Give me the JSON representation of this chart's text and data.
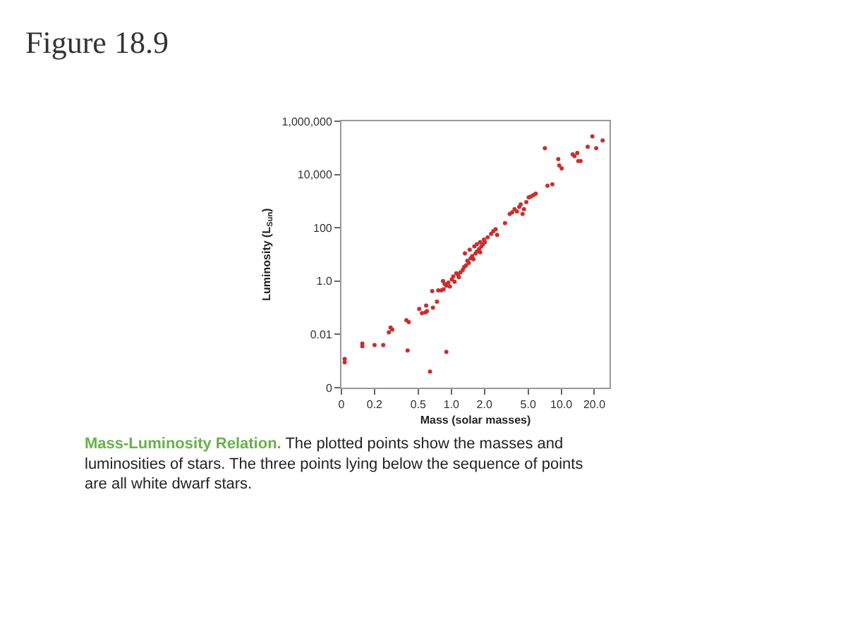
{
  "chart_data": {
    "type": "scatter",
    "title": "Figure 18.9",
    "xlabel": "Mass (solar masses)",
    "ylabel": "Luminosity (L$_{Sun}$)",
    "log": "xy",
    "marker": "circle",
    "xlim": [
      0.1,
      27.5
    ],
    "xticks": [
      {
        "value": 0.1,
        "label": "0"
      },
      0.2,
      0.5,
      {
        "value": 1.0,
        "label": "1.0"
      },
      {
        "value": 2.0,
        "label": "2.0"
      },
      {
        "value": 5.0,
        "label": "5.0"
      },
      {
        "value": 10.0,
        "label": "10.0"
      },
      {
        "value": 20.0,
        "label": "20.0"
      }
    ],
    "ylim": [
      0.0001,
      1000000
    ],
    "yticks": [
      {
        "value": 0.0001,
        "label": "0"
      },
      0.01,
      {
        "value": 1.0,
        "label": "1.0"
      },
      100,
      {
        "value": 10000,
        "label": "10,000"
      },
      {
        "value": 1000000,
        "label": "1,000,000"
      }
    ],
    "annotations": [
      "Mass-Luminosity Relation.",
      "The plotted points show the masses and luminosities of stars. The three points lying below the sequence of points are all white dwarf stars."
    ],
    "series": [
      {
        "color": "#c8302f",
        "x": [
          0.107,
          0.107,
          0.155,
          0.155,
          0.2,
          0.24,
          0.27,
          0.28,
          0.29,
          0.39,
          0.41,
          0.4,
          0.51,
          0.54,
          0.58,
          0.6,
          0.59,
          0.64,
          0.67,
          0.68,
          0.74,
          0.9,
          0.76,
          0.81,
          0.85,
          0.84,
          0.87,
          0.9,
          0.94,
          0.97,
          1.01,
          1.04,
          1.07,
          1.11,
          1.15,
          1.17,
          1.21,
          1.27,
          1.31,
          1.36,
          1.4,
          1.44,
          1.5,
          1.55,
          1.59,
          1.66,
          1.71,
          1.79,
          1.83,
          1.88,
          1.94,
          2.02,
          1.33,
          1.47,
          1.62,
          1.71,
          1.83,
          1.98,
          2.14,
          2.3,
          2.41,
          2.53,
          2.61,
          3.08,
          3.4,
          3.58,
          3.76,
          3.95,
          4.15,
          4.28,
          4.45,
          4.58,
          4.81,
          5.06,
          5.31,
          5.58,
          5.86,
          7.1,
          7.5,
          8.3,
          9.4,
          9.6,
          10.1,
          12.7,
          13.2,
          14.0,
          14.3,
          15.0,
          17.4,
          19.2,
          20.8,
          23.8
        ],
        "values": [
          0.0012,
          0.0009,
          0.0045,
          0.0036,
          0.004,
          0.004,
          0.012,
          0.018,
          0.015,
          0.034,
          0.029,
          0.0025,
          0.09,
          0.063,
          0.067,
          0.074,
          0.12,
          0.0004,
          0.42,
          0.1,
          0.17,
          0.0022,
          0.45,
          0.45,
          0.49,
          1.0,
          0.77,
          0.68,
          0.87,
          0.63,
          1.15,
          1.5,
          0.94,
          1.95,
          1.7,
          1.4,
          2.1,
          2.6,
          3.4,
          3.9,
          5.8,
          4.8,
          7.1,
          8.7,
          6.6,
          11,
          13,
          16,
          12,
          20,
          24,
          29,
          11,
          15,
          20,
          24,
          29,
          36,
          44,
          59,
          75,
          88,
          54,
          150,
          330,
          380,
          500,
          410,
          610,
          750,
          330,
          500,
          920,
          1400,
          1500,
          1700,
          1900,
          97000,
          3800,
          4300,
          38000,
          22000,
          17000,
          57000,
          49000,
          65000,
          32000,
          32000,
          110000,
          270000,
          97000,
          190000
        ]
      }
    ]
  }
}
